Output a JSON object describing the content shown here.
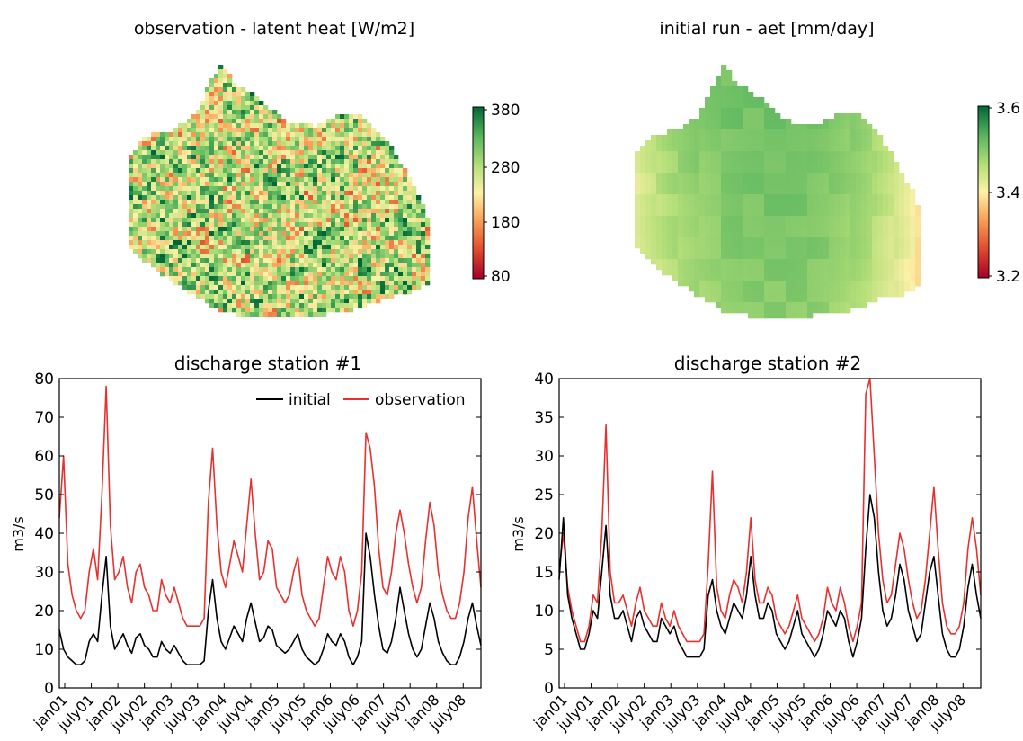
{
  "chart_data": [
    {
      "type": "heatmap",
      "title": "observation - latent heat [W/m2]",
      "colorbar": {
        "ticks": [
          "380",
          "280",
          "180",
          "80"
        ],
        "range": [
          80,
          380
        ],
        "colormap": "RdYlGn"
      },
      "grid": false
    },
    {
      "type": "heatmap",
      "title": "initial run - aet [mm/day]",
      "colorbar": {
        "ticks": [
          "3.6",
          "3.4",
          "3.2"
        ],
        "range": [
          3.2,
          3.6
        ],
        "colormap": "RdYlGn"
      },
      "grid": false
    },
    {
      "type": "line",
      "title": "discharge station #1",
      "ylabel": "m3/s",
      "ylim": [
        0,
        80
      ],
      "yticks": [
        "0",
        "10",
        "20",
        "30",
        "40",
        "50",
        "60",
        "70",
        "80"
      ],
      "xticks": [
        "jan01",
        "july01",
        "jan02",
        "july02",
        "jan03",
        "july03",
        "jan04",
        "july04",
        "jan05",
        "july05",
        "jan06",
        "july06",
        "jan07",
        "july07",
        "jan08",
        "july08"
      ],
      "legend": {
        "position": "top-right",
        "entries": [
          "initial",
          "observation"
        ]
      },
      "series": [
        {
          "name": "initial",
          "color": "#000000",
          "values": [
            15,
            10,
            8,
            7,
            6,
            6,
            7,
            12,
            14,
            12,
            24,
            34,
            16,
            10,
            12,
            14,
            11,
            9,
            13,
            14,
            11,
            10,
            8,
            8,
            12,
            10,
            9,
            11,
            9,
            7,
            6,
            6,
            6,
            6,
            7,
            20,
            28,
            18,
            12,
            10,
            13,
            16,
            14,
            12,
            18,
            22,
            17,
            12,
            13,
            16,
            15,
            11,
            10,
            9,
            10,
            12,
            14,
            10,
            8,
            7,
            6,
            7,
            10,
            14,
            12,
            11,
            14,
            12,
            8,
            6,
            8,
            12,
            40,
            34,
            24,
            16,
            10,
            9,
            12,
            18,
            26,
            20,
            14,
            10,
            8,
            10,
            16,
            22,
            18,
            12,
            9,
            7,
            6,
            6,
            8,
            12,
            18,
            22,
            16,
            11
          ]
        },
        {
          "name": "observation",
          "color": "#e8302f",
          "values": [
            44,
            60,
            32,
            24,
            20,
            18,
            20,
            30,
            36,
            28,
            50,
            78,
            42,
            28,
            30,
            34,
            26,
            22,
            30,
            32,
            26,
            24,
            20,
            20,
            28,
            24,
            22,
            26,
            22,
            18,
            16,
            16,
            16,
            16,
            18,
            48,
            62,
            42,
            30,
            26,
            32,
            38,
            34,
            30,
            42,
            54,
            40,
            28,
            30,
            38,
            36,
            26,
            24,
            22,
            24,
            30,
            34,
            24,
            20,
            18,
            16,
            18,
            26,
            34,
            30,
            28,
            34,
            30,
            20,
            16,
            20,
            30,
            66,
            62,
            52,
            36,
            26,
            24,
            30,
            40,
            46,
            40,
            32,
            26,
            22,
            26,
            38,
            48,
            42,
            30,
            24,
            20,
            18,
            18,
            22,
            30,
            44,
            52,
            38,
            26
          ]
        }
      ]
    },
    {
      "type": "line",
      "title": "discharge station #2",
      "ylabel": "m3/s",
      "ylim": [
        0,
        40
      ],
      "yticks": [
        "0",
        "5",
        "10",
        "15",
        "20",
        "25",
        "30",
        "35",
        "40"
      ],
      "xticks": [
        "jan01",
        "july01",
        "jan02",
        "july02",
        "jan03",
        "july03",
        "jan04",
        "july04",
        "jan05",
        "july05",
        "jan06",
        "july06",
        "jan07",
        "july07",
        "jan08",
        "july08"
      ],
      "series": [
        {
          "name": "initial",
          "color": "#000000",
          "values": [
            14,
            22,
            12,
            9,
            7,
            5,
            5,
            7,
            10,
            9,
            15,
            21,
            12,
            9,
            9,
            10,
            8,
            6,
            9,
            10,
            8,
            7,
            6,
            6,
            9,
            8,
            7,
            8,
            6,
            5,
            4,
            4,
            4,
            4,
            5,
            12,
            14,
            10,
            8,
            7,
            9,
            11,
            10,
            9,
            12,
            17,
            12,
            9,
            9,
            11,
            10,
            7,
            6,
            5,
            6,
            8,
            10,
            7,
            6,
            5,
            4,
            5,
            7,
            10,
            9,
            8,
            10,
            9,
            6,
            4,
            6,
            9,
            18,
            25,
            22,
            15,
            10,
            8,
            9,
            12,
            16,
            14,
            10,
            8,
            6,
            7,
            11,
            15,
            17,
            12,
            7,
            5,
            4,
            4,
            5,
            8,
            13,
            16,
            12,
            9
          ]
        },
        {
          "name": "observation",
          "color": "#e8302f",
          "values": [
            15,
            20,
            13,
            10,
            8,
            6,
            6,
            8,
            12,
            11,
            20,
            34,
            15,
            11,
            11,
            12,
            10,
            8,
            11,
            13,
            10,
            9,
            8,
            8,
            11,
            9,
            8,
            10,
            8,
            7,
            6,
            6,
            6,
            6,
            7,
            16,
            28,
            13,
            10,
            9,
            12,
            14,
            13,
            11,
            15,
            22,
            14,
            11,
            11,
            13,
            12,
            9,
            8,
            7,
            8,
            10,
            12,
            9,
            8,
            7,
            6,
            7,
            9,
            13,
            11,
            10,
            13,
            11,
            8,
            6,
            8,
            11,
            38,
            40,
            30,
            20,
            14,
            11,
            12,
            16,
            20,
            18,
            14,
            11,
            9,
            10,
            14,
            20,
            26,
            18,
            11,
            8,
            7,
            7,
            8,
            11,
            18,
            22,
            18,
            12
          ]
        }
      ]
    }
  ]
}
